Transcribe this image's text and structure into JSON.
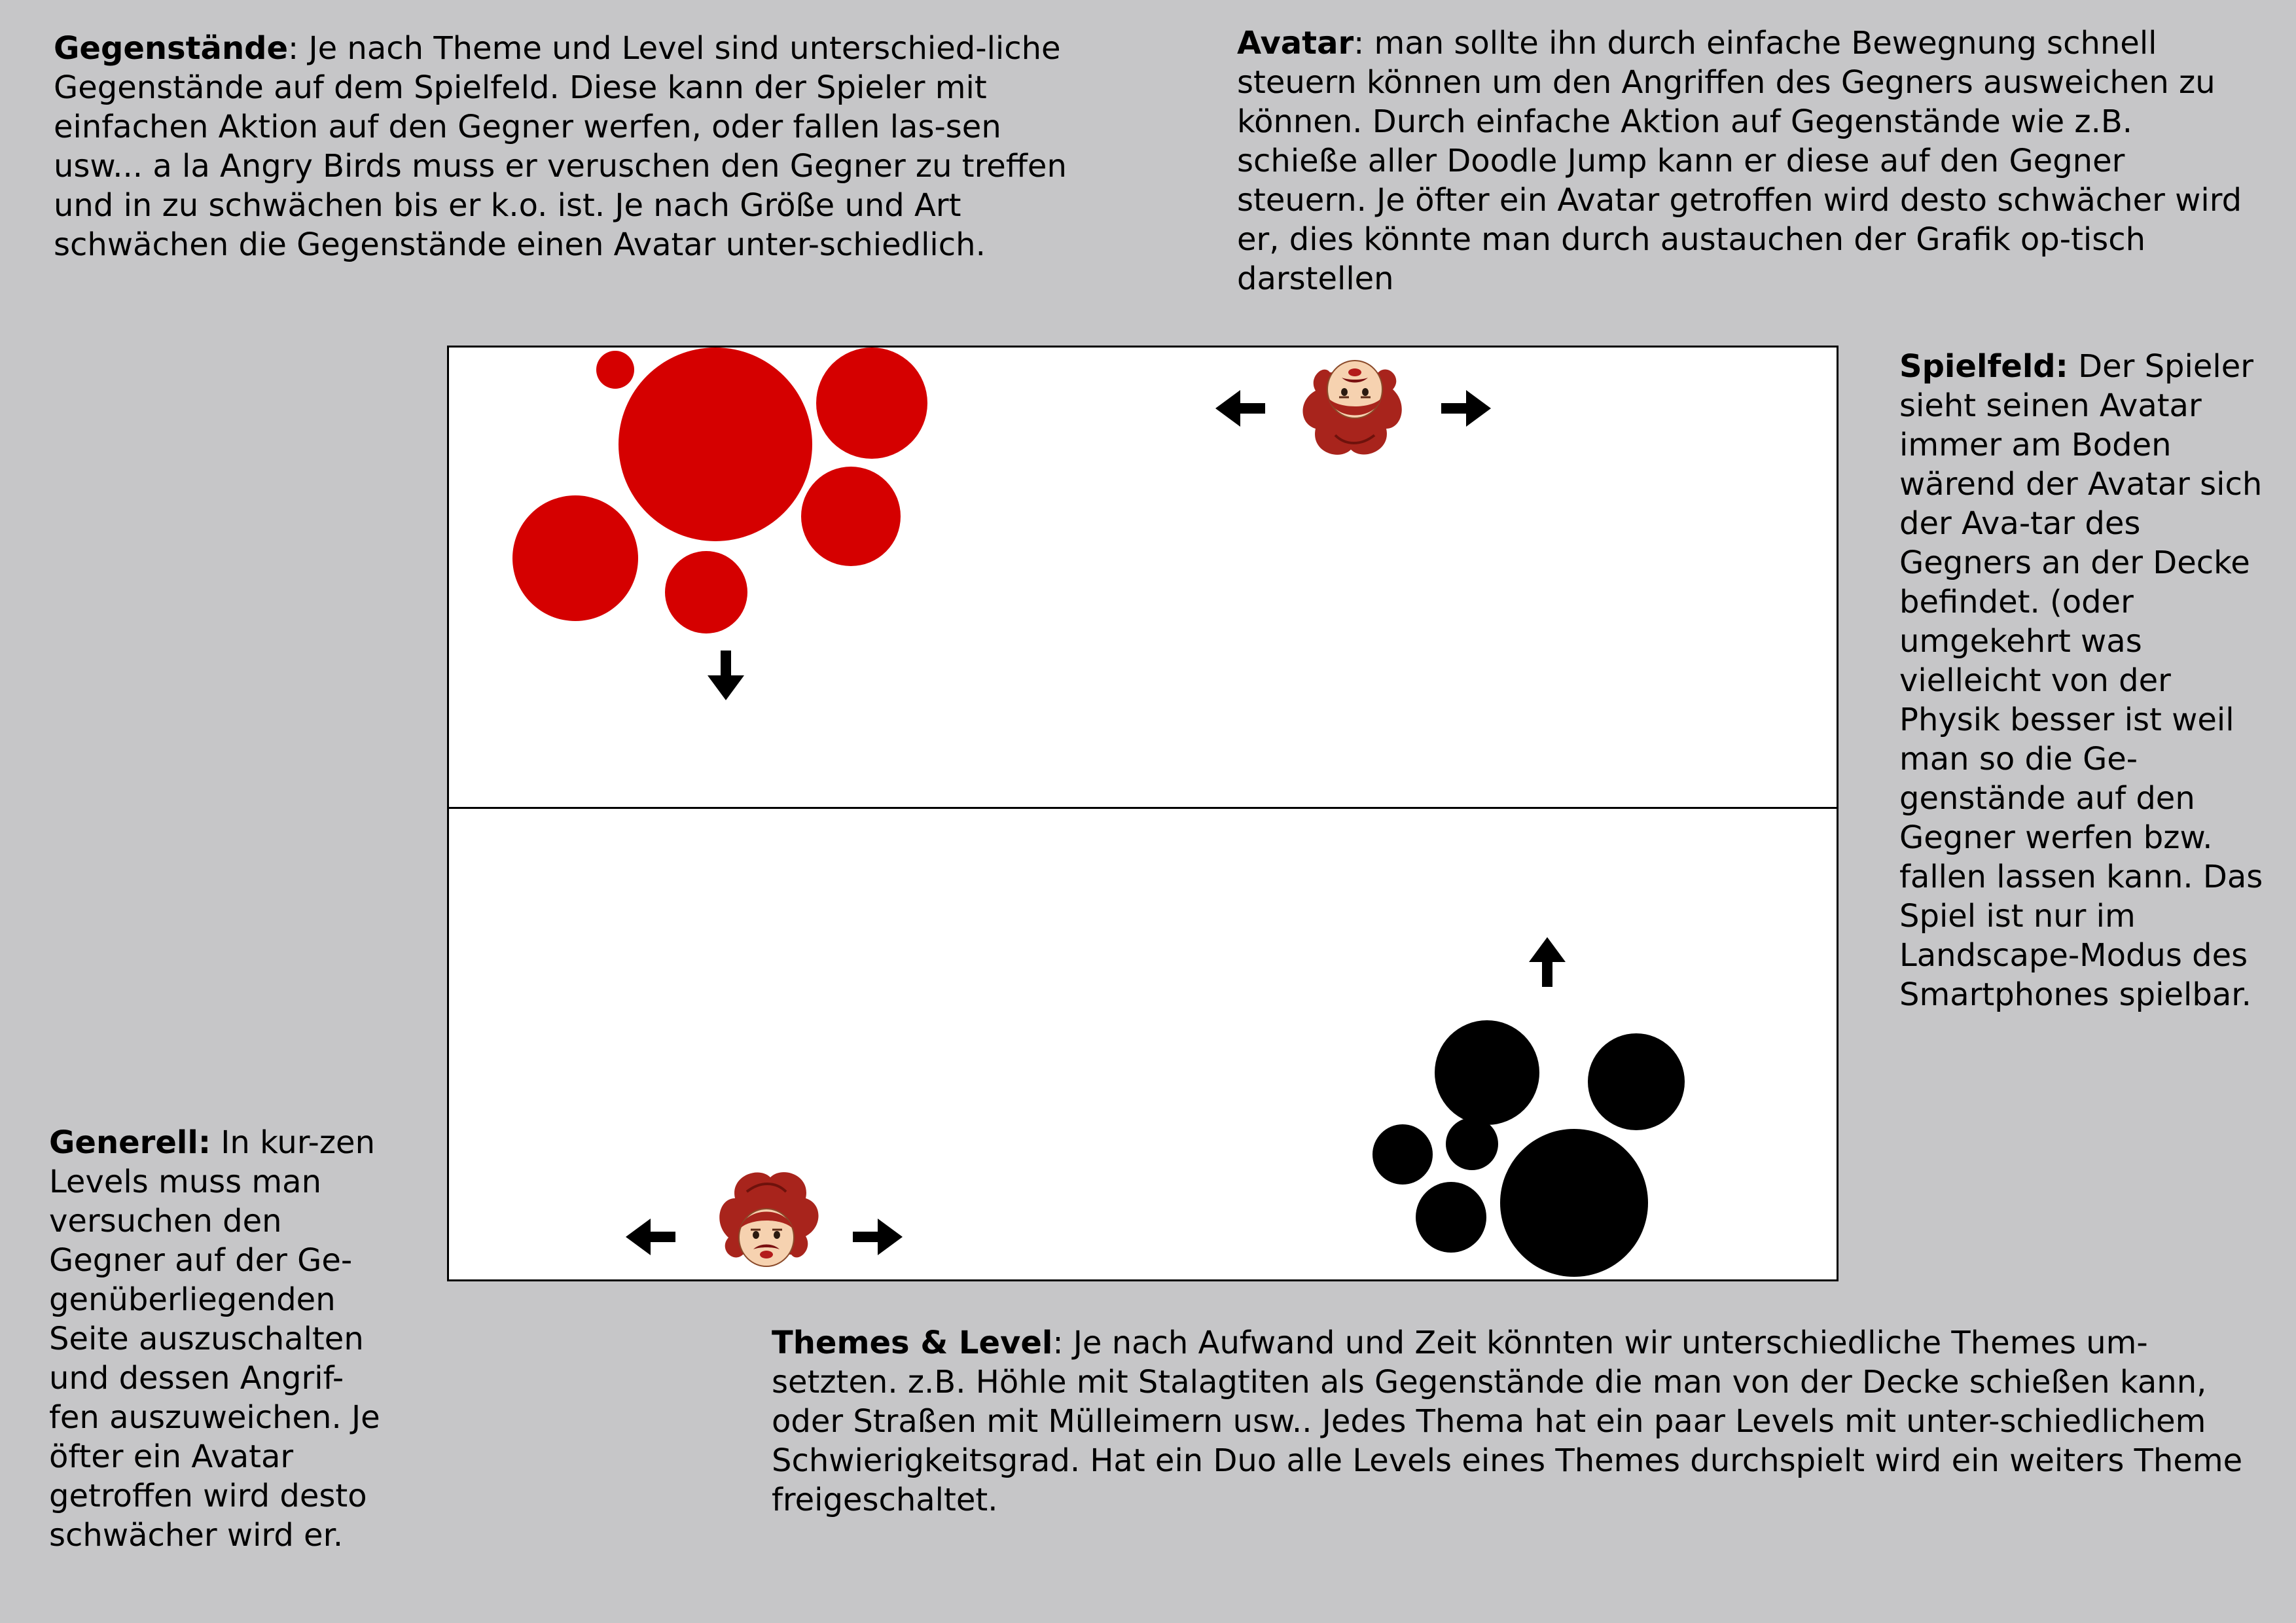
{
  "notes": {
    "gegenstaende": {
      "title": "Gegenstände",
      "text": ": Je nach Theme und Level sind unterschied-liche Gegenstände auf dem Spielfeld. Diese kann der Spieler mit einfachen Aktion auf den Gegner werfen, oder fallen las-sen usw... a la Angry Birds muss er veruschen den Gegner zu treffen und in zu schwächen bis er k.o. ist. Je nach Größe und Art schwächen die Gegenstände einen Avatar unter-schiedlich."
    },
    "avatar": {
      "title": "Avatar",
      "text": ": man sollte ihn durch einfache Bewegnung schnell steuern können um den Angriffen des Gegners ausweichen zu können. Durch einfache Aktion auf Gegenstände wie z.B. schieße aller Doodle Jump kann er diese auf den Gegner steuern. Je öfter ein Avatar getroffen wird desto schwächer wird er, dies könnte man durch austauchen der Grafik op-tisch darstellen"
    },
    "spielfeld": {
      "title": "Spielfeld:",
      "text": " Der Spieler sieht seinen Avatar immer am Boden wärend der Avatar sich der Ava-tar des Gegners an der Decke befindet. (oder umgekehrt was vielleicht von der Physik besser ist weil man so die Ge-genstände auf den Gegner werfen bzw. fallen lassen kann. Das Spiel ist nur im Landscape-Modus des Smartphones spielbar."
    },
    "generell": {
      "title": "Generell:",
      "text": " In kur-zen Levels muss man versuchen den Gegner auf der Ge-genüberliegenden Seite auszuschalten und dessen Angrif-fen auszuweichen. Je öfter ein Avatar getroffen wird desto schwächer wird er."
    },
    "themes": {
      "title": "Themes & Level",
      "text": ": Je nach Aufwand und Zeit könnten wir unterschiedliche Themes um-setzten. z.B. Höhle mit Stalagtiten als Gegenstände die man von der Decke schießen kann, oder Straßen mit Mülleimern usw.. Jedes Thema hat ein paar Levels mit unter-schiedlichem Schwierigkeitsgrad. Hat ein Duo alle Levels eines Themes durchspielt wird ein weiters Theme freigeschaltet."
    }
  },
  "colors": {
    "background": "#c6c6c8",
    "opponent_objects": "#d50000",
    "player_objects": "#000000",
    "hair": "#a8241c",
    "skin": "#f6d2b0"
  },
  "icons": {
    "arrow": "arrow-icon",
    "avatar": "avatar-icon"
  }
}
